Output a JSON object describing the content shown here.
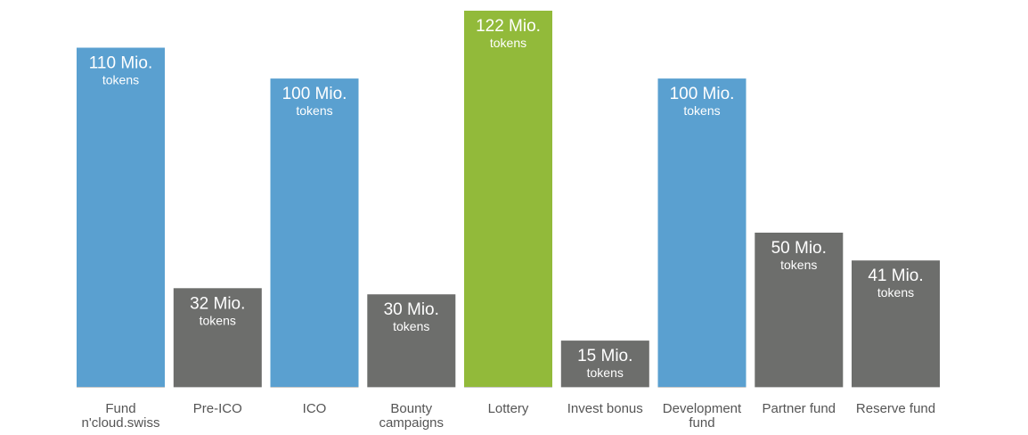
{
  "chart_data": {
    "type": "bar",
    "categories": [
      [
        "Fund",
        "n'cloud.swiss"
      ],
      [
        "Pre-ICO"
      ],
      [
        "ICO"
      ],
      [
        "Bounty",
        "campaigns"
      ],
      [
        "Lottery"
      ],
      [
        "Invest bonus"
      ],
      [
        "Development",
        "fund"
      ],
      [
        "Partner fund"
      ],
      [
        "Reserve fund"
      ]
    ],
    "values": [
      110,
      32,
      100,
      30,
      122,
      15,
      100,
      50,
      41
    ],
    "value_labels": [
      "110 Mio.",
      "32 Mio.",
      "100 Mio.",
      "30 Mio.",
      "122 Mio.",
      "15 Mio.",
      "100 Mio.",
      "50 Mio.",
      "41 Mio."
    ],
    "unit_label": "tokens",
    "colors": [
      "#5aa0d0",
      "#6d6e6c",
      "#5aa0d0",
      "#6d6e6c",
      "#92ba3a",
      "#6d6e6c",
      "#5aa0d0",
      "#6d6e6c",
      "#6d6e6c"
    ],
    "ylim": [
      0,
      122
    ],
    "grid": false,
    "title": "",
    "xlabel": "",
    "ylabel": ""
  }
}
